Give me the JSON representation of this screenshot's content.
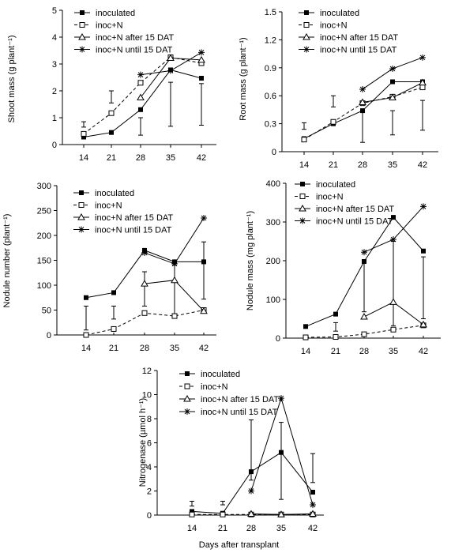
{
  "legend_labels": [
    "inoculated",
    "inoc+N",
    "inoc+N after 15 DAT",
    "inoc+N until 15 DAT"
  ],
  "chart_data": [
    {
      "type": "line",
      "ylabel": "Shoot mass (g plant⁻¹)",
      "xlabel": "",
      "categories": [
        "14",
        "21",
        "28",
        "35",
        "42"
      ],
      "ylim": [
        0,
        5
      ],
      "yticks": [
        "0",
        "1",
        "2",
        "3",
        "4",
        "5"
      ],
      "series": [
        {
          "name": "inoculated",
          "values": [
            0.28,
            0.45,
            1.3,
            2.78,
            2.47
          ]
        },
        {
          "name": "inoc+N",
          "values": [
            0.4,
            1.17,
            2.3,
            3.25,
            3.03
          ]
        },
        {
          "name": "inoc+N after 15 DAT",
          "values": [
            null,
            null,
            1.75,
            3.22,
            3.15
          ]
        },
        {
          "name": "inoc+N until 15 DAT",
          "values": [
            null,
            null,
            2.6,
            2.75,
            3.43
          ]
        }
      ],
      "error_bars": [
        [
          14,
          0.65,
          0.85
        ],
        [
          21,
          1.55,
          2.0
        ],
        [
          28,
          0.35,
          1.0
        ],
        [
          35,
          0.68,
          2.32
        ],
        [
          42,
          0.72,
          2.27
        ]
      ]
    },
    {
      "type": "line",
      "ylabel": "Root mass (g plant⁻¹)",
      "xlabel": "",
      "categories": [
        "14",
        "21",
        "28",
        "35",
        "42"
      ],
      "ylim": [
        0,
        1.5
      ],
      "yticks": [
        "0",
        "0.3",
        "0.6",
        "0.9",
        "1.2",
        "1.5"
      ],
      "series": [
        {
          "name": "inoculated",
          "values": [
            0.14,
            0.3,
            0.44,
            0.75,
            0.75
          ]
        },
        {
          "name": "inoc+N",
          "values": [
            0.13,
            0.32,
            0.52,
            0.59,
            0.69
          ]
        },
        {
          "name": "inoc+N after 15 DAT",
          "values": [
            null,
            null,
            0.53,
            0.58,
            0.74
          ]
        },
        {
          "name": "inoc+N until 15 DAT",
          "values": [
            null,
            null,
            0.67,
            0.89,
            1.01
          ]
        }
      ],
      "error_bars": [
        [
          14,
          0.24,
          0.31
        ],
        [
          21,
          0.48,
          0.6
        ],
        [
          28,
          0.1,
          0.43
        ],
        [
          35,
          0.18,
          0.44
        ],
        [
          42,
          0.23,
          0.55
        ]
      ]
    },
    {
      "type": "line",
      "ylabel": "Nodule number (plant⁻¹)",
      "xlabel": "",
      "categories": [
        "14",
        "21",
        "28",
        "35",
        "42"
      ],
      "ylim": [
        0,
        300
      ],
      "yticks": [
        "0",
        "50",
        "100",
        "150",
        "200",
        "250",
        "300"
      ],
      "series": [
        {
          "name": "inoculated",
          "values": [
            75,
            85,
            170,
            147,
            147
          ]
        },
        {
          "name": "inoc+N",
          "values": [
            0,
            12,
            44,
            38,
            50
          ]
        },
        {
          "name": "inoc+N after 15 DAT",
          "values": [
            null,
            null,
            103,
            110,
            48
          ]
        },
        {
          "name": "inoc+N until 15 DAT",
          "values": [
            null,
            null,
            165,
            143,
            235
          ]
        }
      ],
      "error_bars": [
        [
          14,
          10,
          58
        ],
        [
          21,
          32,
          58
        ],
        [
          28,
          58,
          127
        ],
        [
          35,
          40,
          140
        ],
        [
          42,
          72,
          187
        ]
      ]
    },
    {
      "type": "line",
      "ylabel": "Nodule mass  (mg plant⁻¹)",
      "xlabel": "",
      "categories": [
        "14",
        "21",
        "28",
        "35",
        "42"
      ],
      "ylim": [
        0,
        400
      ],
      "yticks": [
        "0",
        "100",
        "200",
        "300",
        "400"
      ],
      "series": [
        {
          "name": "inoculated",
          "values": [
            30,
            62,
            198,
            312,
            225
          ]
        },
        {
          "name": "inoc+N",
          "values": [
            2,
            3,
            10,
            22,
            33
          ]
        },
        {
          "name": "inoc+N after 15 DAT",
          "values": [
            null,
            null,
            55,
            93,
            35
          ]
        },
        {
          "name": "inoc+N until 15 DAT",
          "values": [
            null,
            null,
            222,
            255,
            340
          ]
        }
      ],
      "error_bars": [
        [
          14,
          5,
          5
        ],
        [
          21,
          18,
          40
        ],
        [
          28,
          68,
          195
        ],
        [
          35,
          32,
          250
        ],
        [
          42,
          50,
          210
        ]
      ]
    },
    {
      "type": "line",
      "ylabel": "Nitrogenase (µmol h⁻¹)",
      "xlabel": "Days after transplant",
      "categories": [
        "14",
        "21",
        "28",
        "35",
        "42"
      ],
      "ylim": [
        0,
        12
      ],
      "yticks": [
        "0",
        "2",
        "4",
        "6",
        "8",
        "10",
        "12"
      ],
      "series": [
        {
          "name": "inoculated",
          "values": [
            0.3,
            0.15,
            3.6,
            5.2,
            1.9
          ]
        },
        {
          "name": "inoc+N",
          "values": [
            0.05,
            0.05,
            0.05,
            0.05,
            0.05
          ]
        },
        {
          "name": "inoc+N after 15 DAT",
          "values": [
            null,
            null,
            0.1,
            0.05,
            0.1
          ]
        },
        {
          "name": "inoc+N until 15 DAT",
          "values": [
            null,
            null,
            2.0,
            9.7,
            0.85
          ]
        }
      ],
      "error_bars": [
        [
          14,
          0.75,
          1.15
        ],
        [
          21,
          0.85,
          1.15
        ],
        [
          28,
          2.9,
          7.9
        ],
        [
          35,
          1.3,
          7.7
        ],
        [
          42,
          2.7,
          5.1
        ]
      ]
    }
  ]
}
